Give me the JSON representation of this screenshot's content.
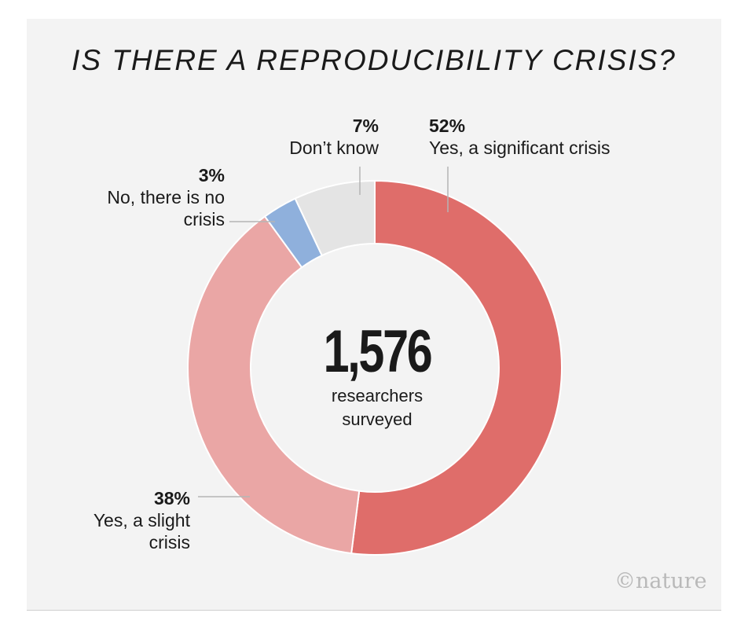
{
  "chart_data": {
    "type": "pie",
    "variant": "donut",
    "title": "IS THERE A REPRODUCIBILITY CRISIS?",
    "center_value": "1,576",
    "center_label": [
      "researchers",
      "surveyed"
    ],
    "slices": [
      {
        "label": "Yes, a significant crisis",
        "label_lines": [
          "Yes, a significant crisis"
        ],
        "value": 52,
        "value_label": "52%",
        "color": "#df6d6a"
      },
      {
        "label": "Yes, a slight crisis",
        "label_lines": [
          "Yes, a slight",
          "crisis"
        ],
        "value": 38,
        "value_label": "38%",
        "color": "#eaa6a5"
      },
      {
        "label": "No, there is no crisis",
        "label_lines": [
          "No, there is no",
          "crisis"
        ],
        "value": 3,
        "value_label": "3%",
        "color": "#8fb0dc"
      },
      {
        "label": "Don't know",
        "label_lines": [
          "Don’t know"
        ],
        "value": 7,
        "value_label": "7%",
        "color": "#e4e4e4"
      }
    ]
  },
  "logo_text": "©nature",
  "colors": {
    "background": "#f3f3f3",
    "significant": "#df6d6a",
    "slight": "#eaa6a5",
    "no_crisis": "#8fb0dc",
    "dont_know": "#e4e4e4"
  }
}
